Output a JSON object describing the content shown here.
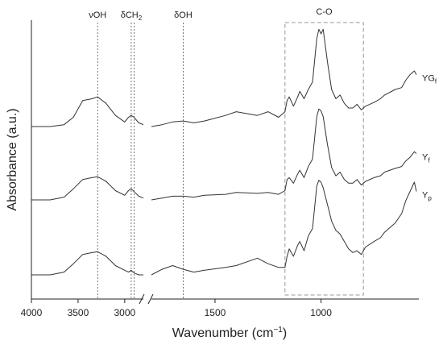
{
  "chart_data": {
    "type": "line",
    "xlabel": "Wavenumber (cm",
    "xlabel_sup": "−1",
    "xlabel_end": ")",
    "ylabel": "Absorbance (a.u.)",
    "x_reversed": true,
    "x_break": [
      2800,
      1800
    ],
    "xticks": [
      {
        "value": 4000,
        "label": "4000"
      },
      {
        "value": 3500,
        "label": "3500"
      },
      {
        "value": 3000,
        "label": "3000"
      },
      {
        "value": 1500,
        "label": "1500"
      },
      {
        "value": 1000,
        "label": "1000"
      }
    ],
    "annotations": [
      {
        "x": 3290,
        "label": "νOH",
        "sub": ""
      },
      {
        "x": 2930,
        "label": "δCH",
        "sub": "2"
      },
      {
        "x": 2900,
        "label": "",
        "sub": ""
      },
      {
        "x": 1650,
        "label": "δOH",
        "sub": ""
      }
    ],
    "region": {
      "x_start": 1170,
      "x_end": 800,
      "label": "C-O"
    },
    "series": [
      {
        "name": "YG",
        "sub": "f",
        "offset": 2.0,
        "points": [
          [
            4000,
            0.0
          ],
          [
            3800,
            0.0
          ],
          [
            3650,
            0.02
          ],
          [
            3550,
            0.1
          ],
          [
            3450,
            0.28
          ],
          [
            3350,
            0.3
          ],
          [
            3290,
            0.32
          ],
          [
            3200,
            0.25
          ],
          [
            3100,
            0.12
          ],
          [
            3000,
            0.05
          ],
          [
            2960,
            0.1
          ],
          [
            2930,
            0.12
          ],
          [
            2900,
            0.1
          ],
          [
            2850,
            0.04
          ],
          [
            2800,
            0.02
          ],
          [
            1800,
            0.0
          ],
          [
            1750,
            0.02
          ],
          [
            1700,
            0.05
          ],
          [
            1650,
            0.06
          ],
          [
            1600,
            0.04
          ],
          [
            1550,
            0.06
          ],
          [
            1450,
            0.12
          ],
          [
            1400,
            0.16
          ],
          [
            1300,
            0.12
          ],
          [
            1250,
            0.16
          ],
          [
            1200,
            0.1
          ],
          [
            1170,
            0.16
          ],
          [
            1160,
            0.28
          ],
          [
            1150,
            0.32
          ],
          [
            1130,
            0.22
          ],
          [
            1110,
            0.32
          ],
          [
            1100,
            0.38
          ],
          [
            1080,
            0.3
          ],
          [
            1060,
            0.4
          ],
          [
            1040,
            0.48
          ],
          [
            1020,
            0.95
          ],
          [
            1010,
            1.05
          ],
          [
            1000,
            1.0
          ],
          [
            990,
            1.05
          ],
          [
            970,
            0.7
          ],
          [
            950,
            0.4
          ],
          [
            930,
            0.3
          ],
          [
            910,
            0.34
          ],
          [
            890,
            0.25
          ],
          [
            870,
            0.2
          ],
          [
            850,
            0.2
          ],
          [
            830,
            0.24
          ],
          [
            810,
            0.18
          ],
          [
            790,
            0.22
          ],
          [
            750,
            0.26
          ],
          [
            720,
            0.3
          ],
          [
            700,
            0.34
          ],
          [
            650,
            0.4
          ],
          [
            620,
            0.42
          ],
          [
            600,
            0.5
          ],
          [
            580,
            0.56
          ],
          [
            560,
            0.6
          ],
          [
            550,
            0.56
          ]
        ]
      },
      {
        "name": "Y",
        "sub": "f",
        "offset": 1.0,
        "points": [
          [
            4000,
            0.0
          ],
          [
            3800,
            0.0
          ],
          [
            3650,
            0.03
          ],
          [
            3550,
            0.12
          ],
          [
            3450,
            0.22
          ],
          [
            3350,
            0.24
          ],
          [
            3290,
            0.25
          ],
          [
            3200,
            0.2
          ],
          [
            3100,
            0.1
          ],
          [
            3000,
            0.05
          ],
          [
            2960,
            0.1
          ],
          [
            2930,
            0.12
          ],
          [
            2900,
            0.09
          ],
          [
            2850,
            0.04
          ],
          [
            2800,
            0.02
          ],
          [
            1800,
            0.0
          ],
          [
            1750,
            0.02
          ],
          [
            1700,
            0.04
          ],
          [
            1650,
            0.04
          ],
          [
            1600,
            0.03
          ],
          [
            1550,
            0.05
          ],
          [
            1450,
            0.06
          ],
          [
            1400,
            0.08
          ],
          [
            1300,
            0.07
          ],
          [
            1250,
            0.08
          ],
          [
            1200,
            0.06
          ],
          [
            1170,
            0.1
          ],
          [
            1160,
            0.22
          ],
          [
            1150,
            0.24
          ],
          [
            1130,
            0.18
          ],
          [
            1110,
            0.28
          ],
          [
            1100,
            0.32
          ],
          [
            1080,
            0.24
          ],
          [
            1060,
            0.36
          ],
          [
            1040,
            0.44
          ],
          [
            1020,
            0.9
          ],
          [
            1010,
            0.98
          ],
          [
            1000,
            0.96
          ],
          [
            990,
            0.9
          ],
          [
            970,
            0.6
          ],
          [
            950,
            0.35
          ],
          [
            930,
            0.26
          ],
          [
            910,
            0.3
          ],
          [
            890,
            0.22
          ],
          [
            870,
            0.18
          ],
          [
            850,
            0.18
          ],
          [
            830,
            0.22
          ],
          [
            810,
            0.16
          ],
          [
            790,
            0.2
          ],
          [
            750,
            0.24
          ],
          [
            720,
            0.26
          ],
          [
            700,
            0.3
          ],
          [
            650,
            0.34
          ],
          [
            620,
            0.36
          ],
          [
            600,
            0.42
          ],
          [
            580,
            0.46
          ],
          [
            560,
            0.52
          ],
          [
            550,
            0.5
          ]
        ]
      },
      {
        "name": "Y",
        "sub": "p",
        "offset": 0.0,
        "points": [
          [
            4000,
            0.0
          ],
          [
            3800,
            0.0
          ],
          [
            3650,
            0.03
          ],
          [
            3550,
            0.12
          ],
          [
            3450,
            0.22
          ],
          [
            3350,
            0.24
          ],
          [
            3290,
            0.25
          ],
          [
            3200,
            0.2
          ],
          [
            3100,
            0.1
          ],
          [
            3000,
            0.05
          ],
          [
            2960,
            0.03
          ],
          [
            2930,
            0.05
          ],
          [
            2900,
            0.02
          ],
          [
            2850,
            0.0
          ],
          [
            2800,
            0.0
          ],
          [
            1800,
            0.0
          ],
          [
            1750,
            0.06
          ],
          [
            1700,
            0.1
          ],
          [
            1650,
            0.06
          ],
          [
            1600,
            0.03
          ],
          [
            1550,
            0.05
          ],
          [
            1450,
            0.08
          ],
          [
            1400,
            0.1
          ],
          [
            1300,
            0.18
          ],
          [
            1250,
            0.12
          ],
          [
            1200,
            0.08
          ],
          [
            1170,
            0.08
          ],
          [
            1160,
            0.2
          ],
          [
            1150,
            0.28
          ],
          [
            1130,
            0.2
          ],
          [
            1110,
            0.32
          ],
          [
            1100,
            0.36
          ],
          [
            1080,
            0.26
          ],
          [
            1060,
            0.42
          ],
          [
            1040,
            0.5
          ],
          [
            1020,
            0.96
          ],
          [
            1010,
            1.02
          ],
          [
            1000,
            1.0
          ],
          [
            990,
            0.94
          ],
          [
            970,
            0.76
          ],
          [
            950,
            0.58
          ],
          [
            930,
            0.48
          ],
          [
            910,
            0.44
          ],
          [
            890,
            0.36
          ],
          [
            870,
            0.28
          ],
          [
            850,
            0.24
          ],
          [
            830,
            0.26
          ],
          [
            810,
            0.22
          ],
          [
            790,
            0.3
          ],
          [
            750,
            0.36
          ],
          [
            720,
            0.4
          ],
          [
            700,
            0.46
          ],
          [
            650,
            0.56
          ],
          [
            620,
            0.66
          ],
          [
            600,
            0.8
          ],
          [
            580,
            0.9
          ],
          [
            560,
            1.0
          ],
          [
            550,
            0.9
          ]
        ]
      }
    ]
  }
}
